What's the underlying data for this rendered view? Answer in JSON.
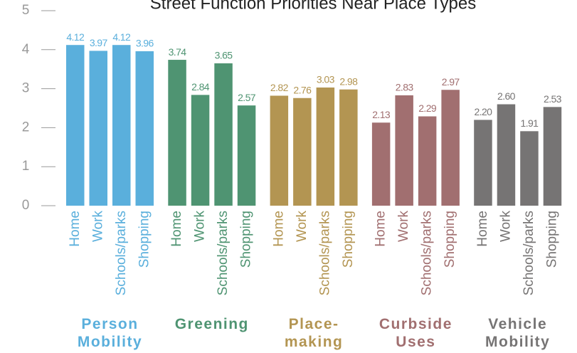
{
  "chart_data": {
    "type": "bar",
    "title": "Street Function Priorities Near Place Types",
    "categories": [
      "Home",
      "Work",
      "Schools/parks",
      "Shopping"
    ],
    "series": [
      {
        "name": "Person Mobility",
        "color": "#5aafdc",
        "values": [
          4.12,
          3.97,
          4.12,
          3.96
        ],
        "value_labels": [
          "4.12",
          "3.97",
          "4.12",
          "3.96"
        ]
      },
      {
        "name": "Greening",
        "color": "#4f9472",
        "values": [
          3.74,
          2.84,
          3.65,
          2.57
        ],
        "value_labels": [
          "3.74",
          "2.84",
          "3.65",
          "2.57"
        ]
      },
      {
        "name": "Place-making",
        "color": "#b39552",
        "values": [
          2.82,
          2.76,
          3.03,
          2.98
        ],
        "value_labels": [
          "2.82",
          "2.76",
          "3.03",
          "2.98"
        ]
      },
      {
        "name": "Curbside Uses",
        "color": "#a16f70",
        "values": [
          2.13,
          2.83,
          2.29,
          2.97
        ],
        "value_labels": [
          "2.13",
          "2.83",
          "2.29",
          "2.97"
        ]
      },
      {
        "name": "Vehicle Mobility",
        "color": "#767474",
        "values": [
          2.2,
          2.6,
          1.91,
          2.53
        ],
        "value_labels": [
          "2.20",
          "2.60",
          "1.91",
          "2.53"
        ]
      }
    ],
    "ylim": [
      0,
      5
    ],
    "yticks": [
      0,
      1,
      2,
      3,
      4,
      5
    ]
  }
}
